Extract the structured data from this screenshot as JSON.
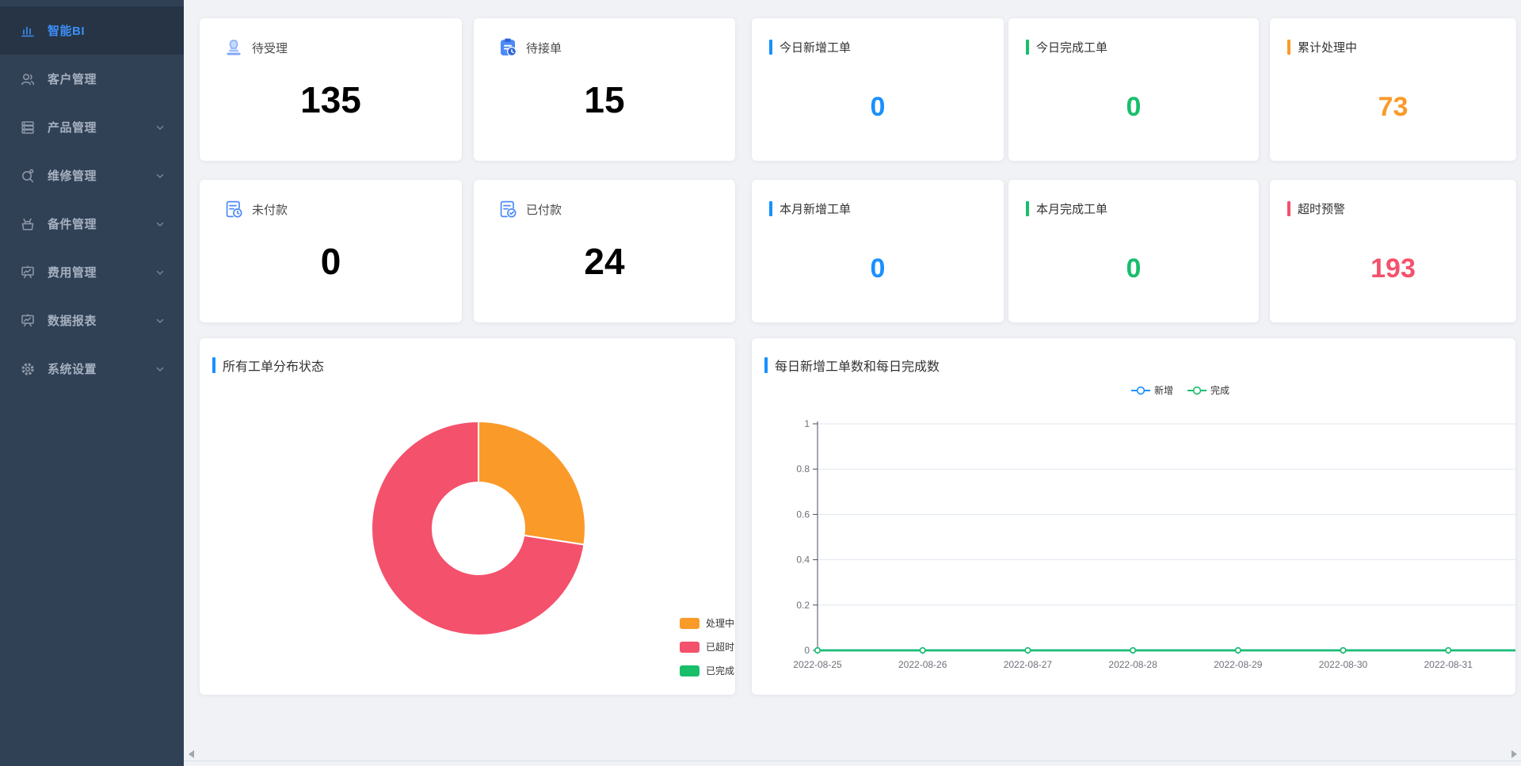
{
  "app": {
    "accent_blue": "#1890FF",
    "accent_green": "#19BE6B",
    "accent_orange": "#FA9A29",
    "accent_red": "#F4516C",
    "sidebar_bg": "#304156",
    "sidebar_active_bg": "#263445",
    "content_bg": "#F0F2F5"
  },
  "sidebar": {
    "items": [
      {
        "label": "智能BI",
        "icon": "bar-chart-icon",
        "active": true,
        "has_chevron": false
      },
      {
        "label": "客户管理",
        "icon": "customers-icon",
        "active": false,
        "has_chevron": false
      },
      {
        "label": "产品管理",
        "icon": "products-icon",
        "active": false,
        "has_chevron": true
      },
      {
        "label": "维修管理",
        "icon": "repair-icon",
        "active": false,
        "has_chevron": true
      },
      {
        "label": "备件管理",
        "icon": "spare-parts-icon",
        "active": false,
        "has_chevron": true
      },
      {
        "label": "费用管理",
        "icon": "expenses-icon",
        "active": false,
        "has_chevron": true
      },
      {
        "label": "数据报表",
        "icon": "reports-icon",
        "active": false,
        "has_chevron": true
      },
      {
        "label": "系统设置",
        "icon": "settings-icon",
        "active": false,
        "has_chevron": true
      }
    ]
  },
  "stat_cards_row1": [
    {
      "label": "待受理",
      "value": "135",
      "icon": "stamp-icon"
    },
    {
      "label": "待接单",
      "value": "15",
      "icon": "order-icon"
    },
    {
      "label": "今日新增工单",
      "value": "0",
      "color": "#1890FF"
    },
    {
      "label": "今日完成工单",
      "value": "0",
      "color": "#19BE6B"
    },
    {
      "label": "累计处理中",
      "value": "73",
      "color": "#FA9A29"
    }
  ],
  "stat_cards_row2": [
    {
      "label": "未付款",
      "value": "0",
      "icon": "invoice-clock-icon"
    },
    {
      "label": "已付款",
      "value": "24",
      "icon": "invoice-check-icon"
    },
    {
      "label": "本月新增工单",
      "value": "0",
      "color": "#1890FF"
    },
    {
      "label": "本月完成工单",
      "value": "0",
      "color": "#19BE6B"
    },
    {
      "label": "超时预警",
      "value": "193",
      "color": "#F4516C"
    }
  ],
  "chart_data": [
    {
      "type": "pie",
      "title": "所有工单分布状态",
      "inner_radius_pct": 43,
      "legend_position": "bottom-right",
      "slices": [
        {
          "name": "处理中",
          "value": 73,
          "color": "#FA9A29"
        },
        {
          "name": "已超时",
          "value": 193,
          "color": "#F4516C"
        },
        {
          "name": "已完成",
          "value": 0,
          "color": "#19BE6B"
        }
      ]
    },
    {
      "type": "line",
      "title": "每日新增工单数和每日完成数",
      "legend": [
        "新增",
        "完成"
      ],
      "legend_position": "top-center",
      "x": [
        "2022-08-25",
        "2022-08-26",
        "2022-08-27",
        "2022-08-28",
        "2022-08-29",
        "2022-08-30",
        "2022-08-31"
      ],
      "series": [
        {
          "name": "新增",
          "color": "#1890FF",
          "values": [
            0,
            0,
            0,
            0,
            0,
            0,
            0
          ]
        },
        {
          "name": "完成",
          "color": "#19BE6B",
          "values": [
            0,
            0,
            0,
            0,
            0,
            0,
            0
          ]
        }
      ],
      "ylim": [
        0,
        1
      ],
      "yticks": [
        "0",
        "0.2",
        "0.4",
        "0.6",
        "0.8",
        "1"
      ],
      "grid": true
    }
  ]
}
